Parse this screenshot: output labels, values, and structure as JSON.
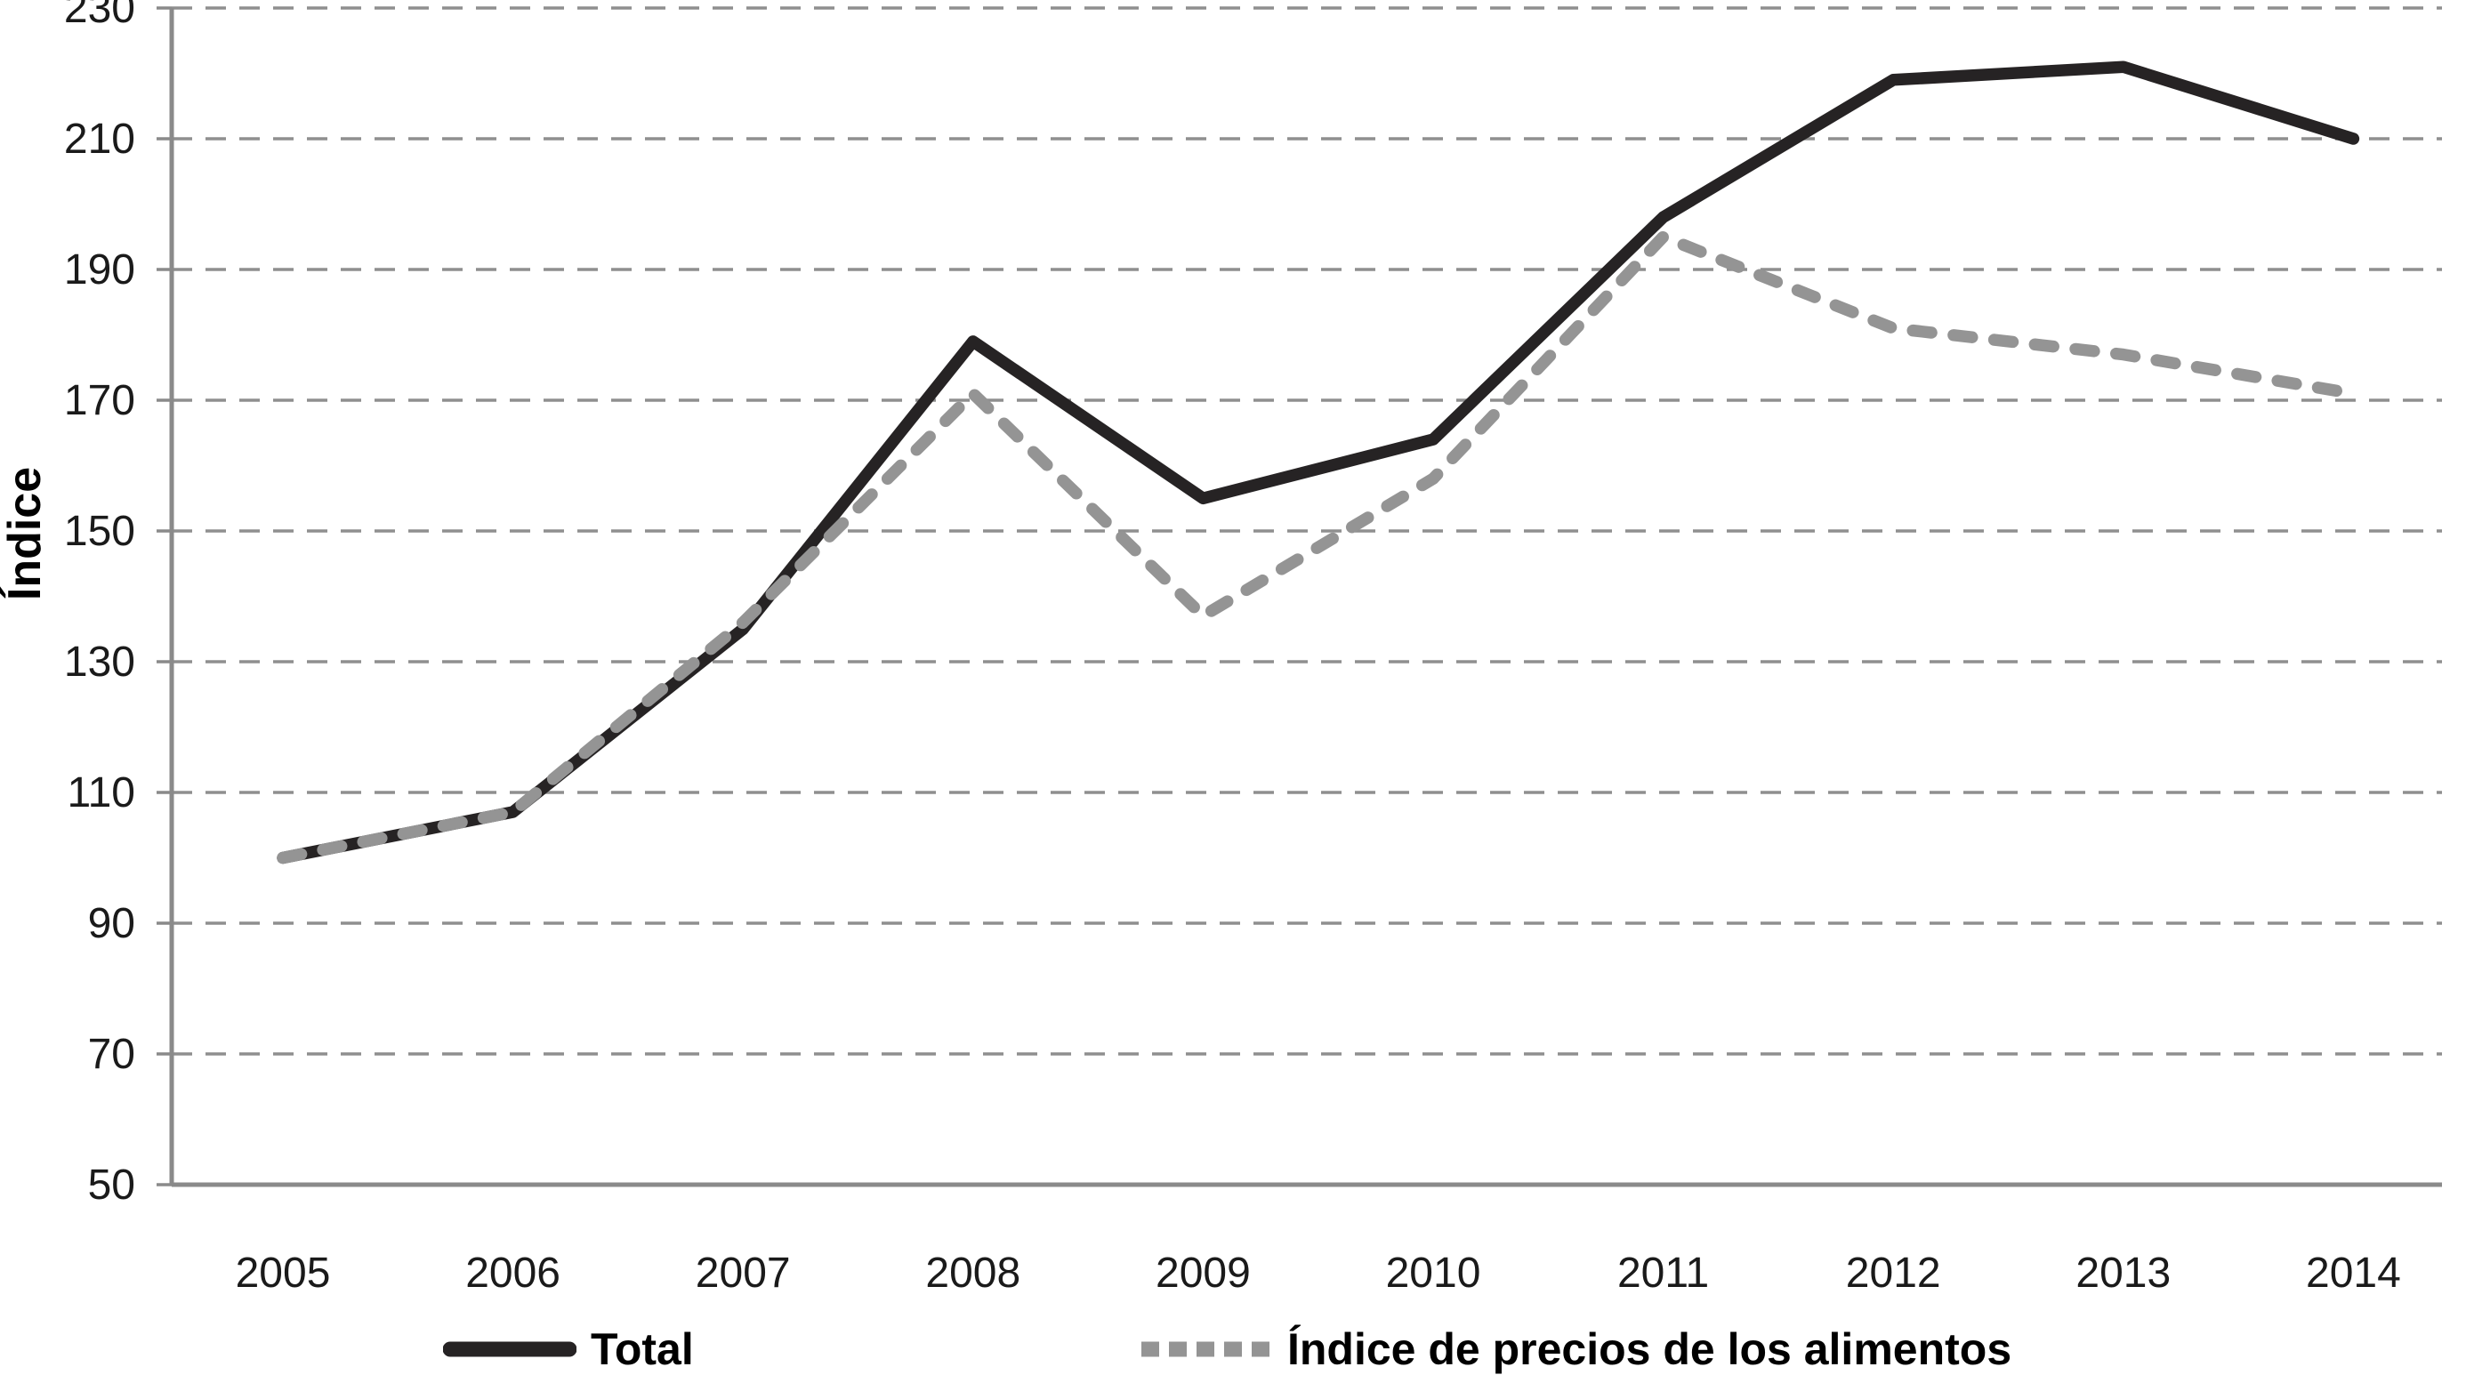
{
  "chart_data": {
    "type": "line",
    "title": "",
    "xlabel": "",
    "ylabel": "Índice",
    "categories": [
      "2005",
      "2006",
      "2007",
      "2008",
      "2009",
      "2010",
      "2011",
      "2012",
      "2013",
      "2014"
    ],
    "ylim": [
      50,
      230
    ],
    "yticks": [
      50,
      70,
      90,
      110,
      130,
      150,
      170,
      190,
      210,
      230
    ],
    "grid": "horizontal-dashed",
    "legend_position": "bottom",
    "series": [
      {
        "name": "Total",
        "style": "solid",
        "color": "#262324",
        "values": [
          100,
          107,
          135,
          179,
          155,
          164,
          198,
          219,
          221,
          210
        ]
      },
      {
        "name": "Índice de precios de los alimentos",
        "style": "dashed",
        "color": "#949494",
        "values": [
          100,
          107,
          136,
          171,
          137,
          158,
          195,
          181,
          177,
          171
        ]
      }
    ]
  },
  "colors": {
    "grid": "#8f8f8f",
    "axis": "#8a8a8a",
    "text": "#1a1a1a"
  }
}
